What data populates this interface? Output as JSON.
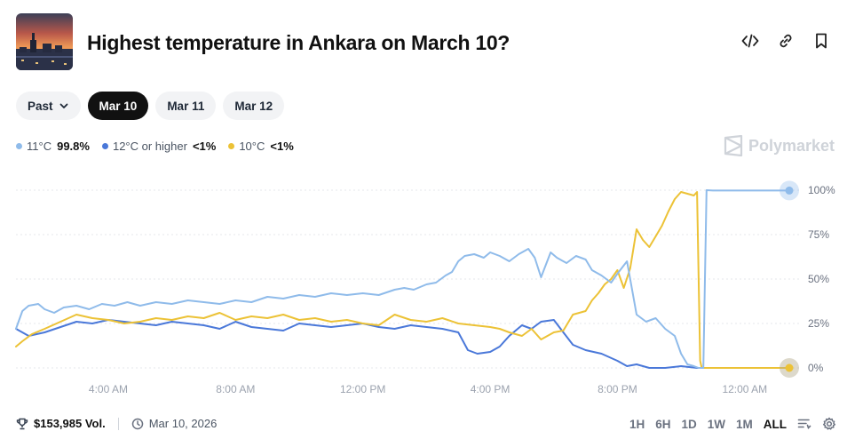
{
  "header": {
    "title": "Highest temperature in Ankara on March 10?"
  },
  "tabs": [
    {
      "label": "Past",
      "active": false,
      "dropdown": true
    },
    {
      "label": "Mar 10",
      "active": true
    },
    {
      "label": "Mar 11",
      "active": false
    },
    {
      "label": "Mar 12",
      "active": false
    }
  ],
  "legend": [
    {
      "label": "11°C",
      "value": "99.8%",
      "color": "#8fbbea"
    },
    {
      "label": "12°C or higher",
      "value": "<1%",
      "color": "#4a78d9"
    },
    {
      "label": "10°C",
      "value": "<1%",
      "color": "#ecc236"
    }
  ],
  "brand": {
    "name": "Polymarket"
  },
  "footer": {
    "volume": "$153,985 Vol.",
    "date": "Mar 10, 2026",
    "ranges": [
      "1H",
      "6H",
      "1D",
      "1W",
      "1M",
      "ALL"
    ],
    "active_range": "ALL"
  },
  "chart_data": {
    "type": "line",
    "title": "",
    "xlabel": "",
    "ylabel": "",
    "ylim": [
      0,
      100
    ],
    "y_ticks": [
      "0%",
      "25%",
      "50%",
      "75%",
      "100%"
    ],
    "y_tick_values": [
      0,
      25,
      50,
      75,
      100
    ],
    "x_range": [
      1.1,
      25.4
    ],
    "x_ticks": [
      "4:00 AM",
      "8:00 AM",
      "12:00 PM",
      "4:00 PM",
      "8:00 PM",
      "12:00 AM"
    ],
    "x_tick_values": [
      4,
      8,
      12,
      16,
      20,
      24
    ],
    "x_unit": "hours since midnight",
    "grid": "horizontal dotted",
    "series": [
      {
        "name": "11°C",
        "color": "#8fbbea",
        "x": [
          1.1,
          1.3,
          1.5,
          1.8,
          2,
          2.3,
          2.6,
          3,
          3.4,
          3.8,
          4.2,
          4.6,
          5,
          5.5,
          6,
          6.5,
          7,
          7.5,
          8,
          8.5,
          9,
          9.5,
          10,
          10.5,
          11,
          11.5,
          12,
          12.5,
          13,
          13.3,
          13.6,
          14,
          14.3,
          14.6,
          14.8,
          15,
          15.2,
          15.5,
          15.8,
          16,
          16.3,
          16.6,
          16.9,
          17.2,
          17.4,
          17.6,
          17.9,
          18.1,
          18.4,
          18.7,
          19,
          19.2,
          19.5,
          19.8,
          20,
          20.3,
          20.6,
          20.9,
          21.2,
          21.5,
          21.8,
          22,
          22.2,
          22.4,
          22.55,
          22.7,
          22.8,
          23,
          23.5,
          24,
          24.5,
          25,
          25.4
        ],
        "values": [
          22,
          32,
          35,
          36,
          33,
          31,
          34,
          35,
          33,
          36,
          35,
          37,
          35,
          37,
          36,
          38,
          37,
          36,
          38,
          37,
          40,
          39,
          41,
          40,
          42,
          41,
          42,
          41,
          44,
          45,
          44,
          47,
          48,
          52,
          54,
          60,
          63,
          64,
          62,
          65,
          63,
          60,
          64,
          67,
          62,
          51,
          65,
          62,
          59,
          63,
          61,
          55,
          52,
          48,
          53,
          60,
          30,
          26,
          28,
          22,
          18,
          8,
          2,
          1,
          0,
          0,
          100,
          99.8,
          99.8,
          99.8,
          99.8,
          99.8,
          99.8
        ]
      },
      {
        "name": "12°C or higher",
        "color": "#4a78d9",
        "x": [
          1.1,
          1.5,
          2,
          2.5,
          3,
          3.5,
          4,
          4.5,
          5,
          5.5,
          6,
          6.5,
          7,
          7.5,
          8,
          8.5,
          9,
          9.5,
          10,
          10.5,
          11,
          11.5,
          12,
          12.5,
          13,
          13.5,
          14,
          14.5,
          15,
          15.3,
          15.6,
          16,
          16.3,
          16.6,
          17,
          17.3,
          17.6,
          18,
          18.3,
          18.6,
          19,
          19.5,
          20,
          20.3,
          20.6,
          21,
          21.5,
          22,
          22.5,
          23,
          23.5,
          24,
          24.5,
          25,
          25.4
        ],
        "values": [
          22,
          18,
          20,
          23,
          26,
          25,
          27,
          26,
          25,
          24,
          26,
          25,
          24,
          22,
          26,
          23,
          22,
          21,
          25,
          24,
          23,
          24,
          25,
          23,
          22,
          24,
          23,
          22,
          20,
          10,
          8,
          9,
          12,
          18,
          24,
          22,
          26,
          27,
          20,
          13,
          10,
          8,
          4,
          1,
          2,
          0,
          0,
          1,
          0,
          0,
          0,
          0,
          0,
          0,
          0
        ]
      },
      {
        "name": "10°C",
        "color": "#ecc236",
        "x": [
          1.1,
          1.3,
          1.6,
          2,
          2.5,
          3,
          3.5,
          4,
          4.5,
          5,
          5.5,
          6,
          6.5,
          7,
          7.5,
          8,
          8.5,
          9,
          9.5,
          10,
          10.5,
          11,
          11.5,
          12,
          12.5,
          13,
          13.5,
          14,
          14.5,
          15,
          15.5,
          16,
          16.3,
          16.6,
          17,
          17.3,
          17.6,
          18,
          18.3,
          18.6,
          19,
          19.2,
          19.4,
          19.6,
          19.8,
          20,
          20.2,
          20.4,
          20.6,
          20.8,
          21,
          21.2,
          21.4,
          21.6,
          21.8,
          22,
          22.2,
          22.4,
          22.5,
          22.6,
          22.65,
          22.7,
          23,
          23.5,
          24,
          24.5,
          25,
          25.4
        ],
        "values": [
          12,
          15,
          19,
          22,
          26,
          30,
          28,
          27,
          25,
          26,
          28,
          27,
          29,
          28,
          31,
          27,
          29,
          28,
          30,
          27,
          28,
          26,
          27,
          25,
          24,
          30,
          27,
          26,
          28,
          25,
          24,
          23,
          22,
          20,
          18,
          22,
          16,
          20,
          21,
          30,
          32,
          38,
          42,
          47,
          50,
          55,
          45,
          56,
          78,
          72,
          68,
          74,
          80,
          88,
          95,
          99,
          98,
          97,
          99,
          4,
          0,
          0,
          0,
          0,
          0,
          0,
          0,
          0
        ]
      }
    ]
  }
}
